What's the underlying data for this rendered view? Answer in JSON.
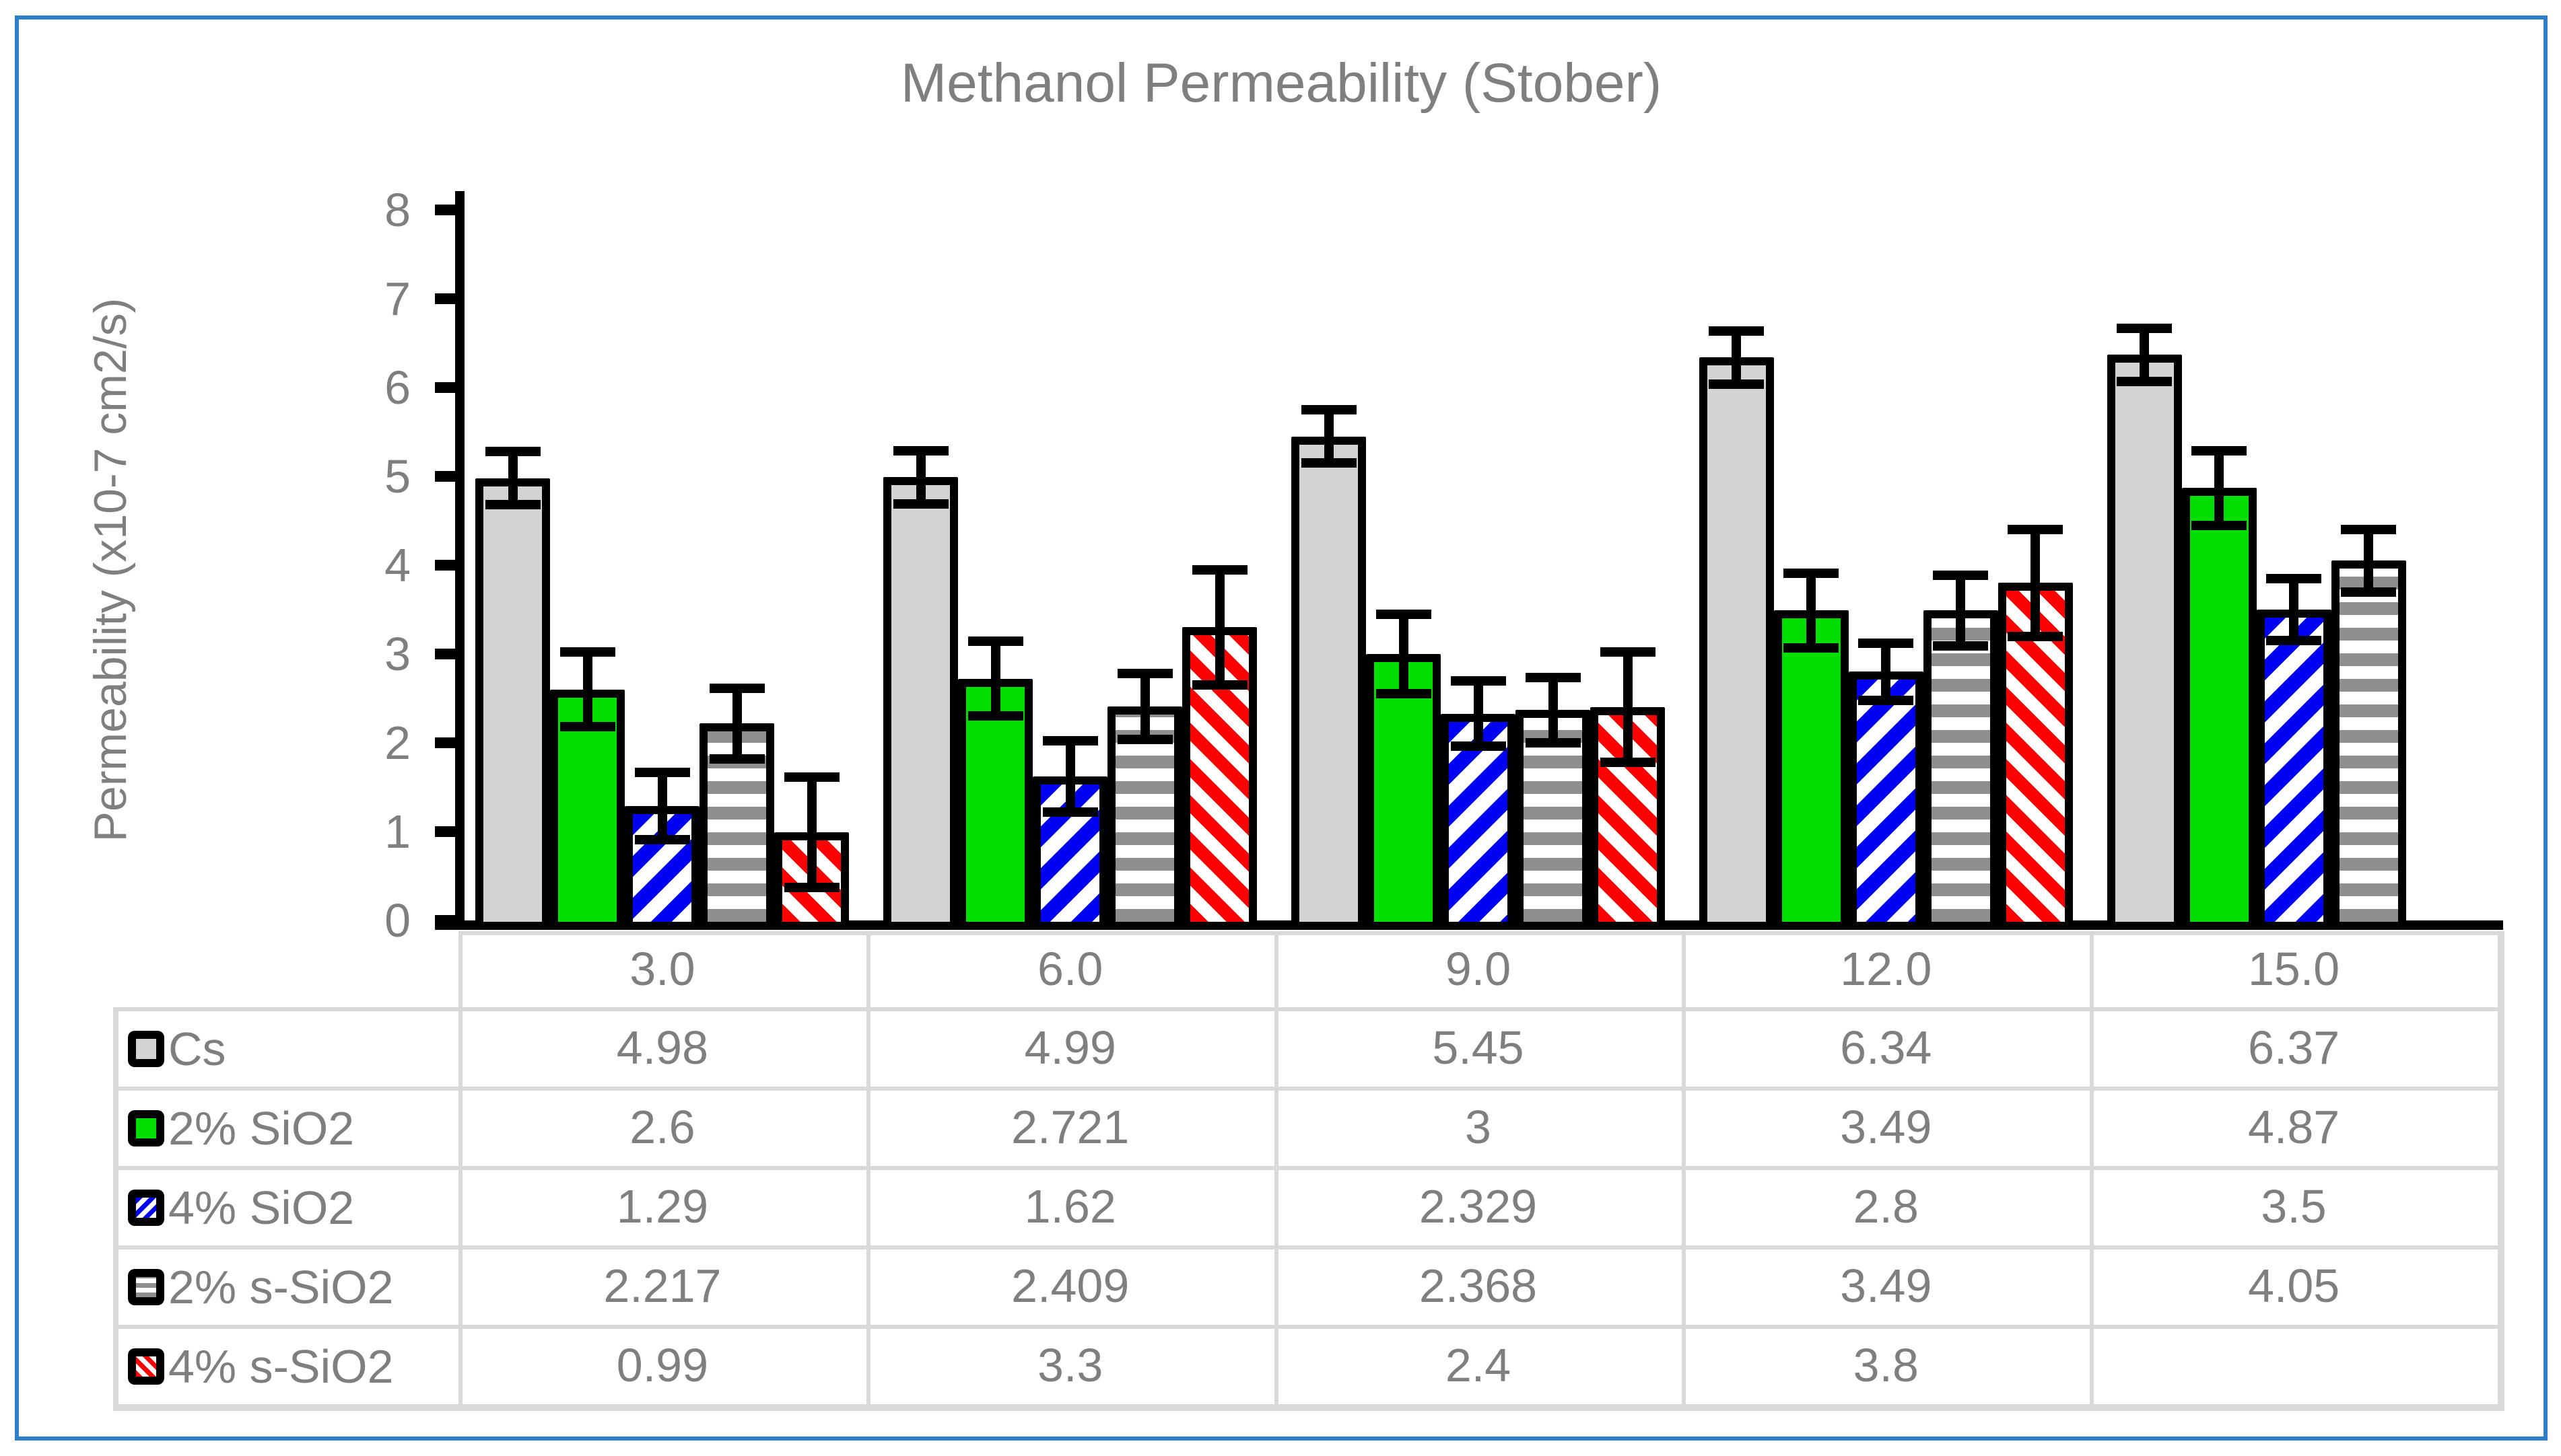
{
  "chart_data": {
    "type": "bar",
    "title": "Methanol Permeability (Stober)",
    "xlabel": "",
    "ylabel": "Permeability (x10-7 cm2/s)",
    "ylim": [
      0,
      8
    ],
    "y_ticks": [
      0,
      1,
      2,
      3,
      4,
      5,
      6,
      7,
      8
    ],
    "grid": false,
    "legend_position": "data-table-left-column",
    "categories": [
      "3.0",
      "6.0",
      "9.0",
      "12.0",
      "15.0"
    ],
    "series": [
      {
        "name": "Cs",
        "fill_type": "solid",
        "color": "#d3d3d3",
        "bg": "#d3d3d3",
        "angle": "0deg",
        "period": 0,
        "values": [
          4.98,
          4.99,
          5.45,
          6.34,
          6.37
        ],
        "errors": [
          0.3,
          0.3,
          0.3,
          0.3,
          0.3
        ]
      },
      {
        "name": "2% SiO2",
        "fill_type": "solid",
        "color": "#00df00",
        "bg": "#00df00",
        "angle": "0deg",
        "period": 0,
        "values": [
          2.6,
          2.721,
          3,
          3.49,
          4.87
        ],
        "errors": [
          0.42,
          0.42,
          0.45,
          0.42,
          0.42
        ]
      },
      {
        "name": "4% SiO2",
        "fill_type": "stripes",
        "color": "#0000f2",
        "bg": "#ffffff",
        "angle": "135deg",
        "period": 44,
        "values": [
          1.29,
          1.62,
          2.329,
          2.8,
          3.5
        ],
        "errors": [
          0.38,
          0.4,
          0.37,
          0.32,
          0.35
        ]
      },
      {
        "name": "2% s-SiO2",
        "fill_type": "stripes",
        "color": "#8f8f8f",
        "bg": "#ffffff",
        "angle": "0deg",
        "period": 38,
        "values": [
          2.217,
          2.409,
          2.368,
          3.49,
          4.05
        ],
        "errors": [
          0.4,
          0.37,
          0.37,
          0.4,
          0.35
        ]
      },
      {
        "name": "4% s-SiO2",
        "fill_type": "stripes",
        "color": "#ff0000",
        "bg": "#ffffff",
        "angle": "45deg",
        "period": 38,
        "values": [
          0.99,
          3.3,
          2.4,
          3.8,
          null
        ],
        "errors": [
          0.62,
          0.65,
          0.62,
          0.6,
          null
        ]
      }
    ],
    "bar_border_color": "#000000",
    "error_bar_color": "#000000",
    "axis_color": "#000000",
    "text_color": "#7f7f7f",
    "table_grid_color": "#d9d9d9",
    "frame_color": "#2d7fc9"
  }
}
